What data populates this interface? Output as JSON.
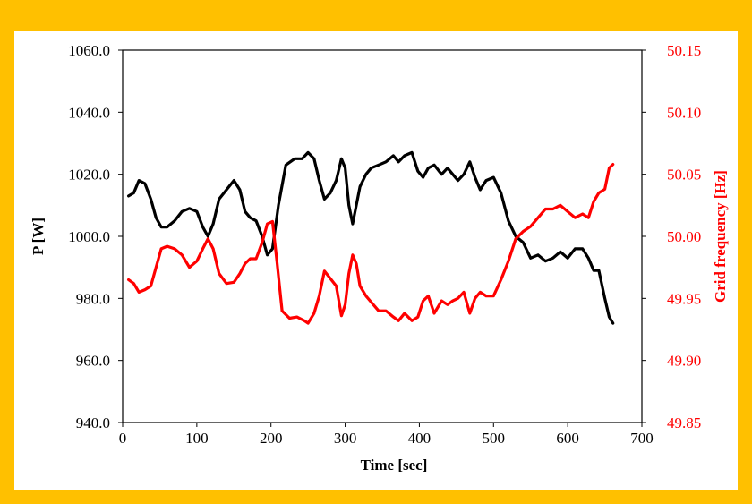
{
  "chart_data": {
    "type": "line",
    "title": "",
    "xlabel": "Time [sec]",
    "ylabel": "P [W]",
    "y2label": "Grid frequency [Hz]",
    "xlim": [
      0,
      700
    ],
    "ylim": [
      940,
      1060
    ],
    "y2lim": [
      49.85,
      50.15
    ],
    "xticks": [
      "0",
      "100",
      "200",
      "300",
      "400",
      "500",
      "600",
      "700"
    ],
    "yticks": [
      "940.0",
      "960.0",
      "980.0",
      "1000.0",
      "1020.0",
      "1040.0",
      "1060.0"
    ],
    "y2ticks": [
      "49.85",
      "49.90",
      "49.95",
      "50.00",
      "50.05",
      "50.10",
      "50.15"
    ],
    "colors": {
      "power": "#000000",
      "frequency": "#ff0000",
      "y2axis": "#ff0000",
      "background": "#ffc000"
    },
    "grid": false,
    "series": [
      {
        "axis": "left",
        "color": "#000000",
        "x": [
          8,
          15,
          22,
          30,
          38,
          45,
          52,
          60,
          70,
          80,
          90,
          100,
          108,
          115,
          122,
          130,
          140,
          150,
          158,
          165,
          172,
          180,
          188,
          195,
          202,
          210,
          220,
          232,
          242,
          250,
          258,
          265,
          272,
          280,
          288,
          295,
          300,
          305,
          310,
          315,
          320,
          328,
          335,
          345,
          355,
          365,
          372,
          380,
          390,
          398,
          405,
          412,
          420,
          430,
          438,
          445,
          452,
          460,
          468,
          475,
          482,
          490,
          500,
          510,
          520,
          530,
          540,
          550,
          560,
          570,
          580,
          590,
          600,
          610,
          620,
          628,
          635,
          642,
          650,
          656,
          661
        ],
        "values": [
          1013,
          1014,
          1018,
          1017,
          1012,
          1006,
          1003,
          1003,
          1005,
          1008,
          1009,
          1008,
          1003,
          1000,
          1004,
          1012,
          1015,
          1018,
          1015,
          1008,
          1006,
          1005,
          1000,
          994,
          996,
          1010,
          1023,
          1025,
          1025,
          1027,
          1025,
          1018,
          1012,
          1014,
          1018,
          1025,
          1022,
          1010,
          1004,
          1010,
          1016,
          1020,
          1022,
          1023,
          1024,
          1026,
          1024,
          1026,
          1027,
          1021,
          1019,
          1022,
          1023,
          1020,
          1022,
          1020,
          1018,
          1020,
          1024,
          1019,
          1015,
          1018,
          1019,
          1014,
          1005,
          1000,
          998,
          993,
          994,
          992,
          993,
          995,
          993,
          996,
          996,
          993,
          989,
          989,
          980,
          974,
          972
        ]
      },
      {
        "axis": "right",
        "color": "#ff0000",
        "x": [
          8,
          15,
          22,
          30,
          38,
          45,
          52,
          60,
          70,
          80,
          90,
          100,
          108,
          115,
          122,
          130,
          140,
          150,
          158,
          165,
          172,
          180,
          188,
          195,
          202,
          208,
          215,
          225,
          235,
          245,
          250,
          258,
          265,
          272,
          280,
          288,
          295,
          300,
          305,
          310,
          315,
          320,
          328,
          335,
          345,
          355,
          365,
          372,
          380,
          390,
          398,
          405,
          412,
          420,
          430,
          438,
          445,
          452,
          460,
          468,
          475,
          482,
          490,
          500,
          510,
          520,
          530,
          540,
          550,
          560,
          570,
          580,
          590,
          600,
          610,
          620,
          628,
          635,
          642,
          650,
          656,
          661
        ],
        "values": [
          49.965,
          49.962,
          49.955,
          49.957,
          49.96,
          49.975,
          49.99,
          49.992,
          49.99,
          49.985,
          49.975,
          49.98,
          49.99,
          49.998,
          49.99,
          49.97,
          49.962,
          49.963,
          49.97,
          49.978,
          49.982,
          49.982,
          49.995,
          50.01,
          50.012,
          49.98,
          49.94,
          49.934,
          49.935,
          49.932,
          49.93,
          49.938,
          49.952,
          49.972,
          49.966,
          49.96,
          49.936,
          49.945,
          49.97,
          49.985,
          49.978,
          49.96,
          49.952,
          49.947,
          49.94,
          49.94,
          49.935,
          49.932,
          49.938,
          49.932,
          49.935,
          49.948,
          49.952,
          49.938,
          49.948,
          49.945,
          49.948,
          49.95,
          49.955,
          49.938,
          49.95,
          49.955,
          49.952,
          49.952,
          49.965,
          49.98,
          49.998,
          50.004,
          50.008,
          50.015,
          50.022,
          50.022,
          50.025,
          50.02,
          50.015,
          50.018,
          50.015,
          50.028,
          50.035,
          50.038,
          50.055,
          50.058
        ]
      }
    ]
  }
}
